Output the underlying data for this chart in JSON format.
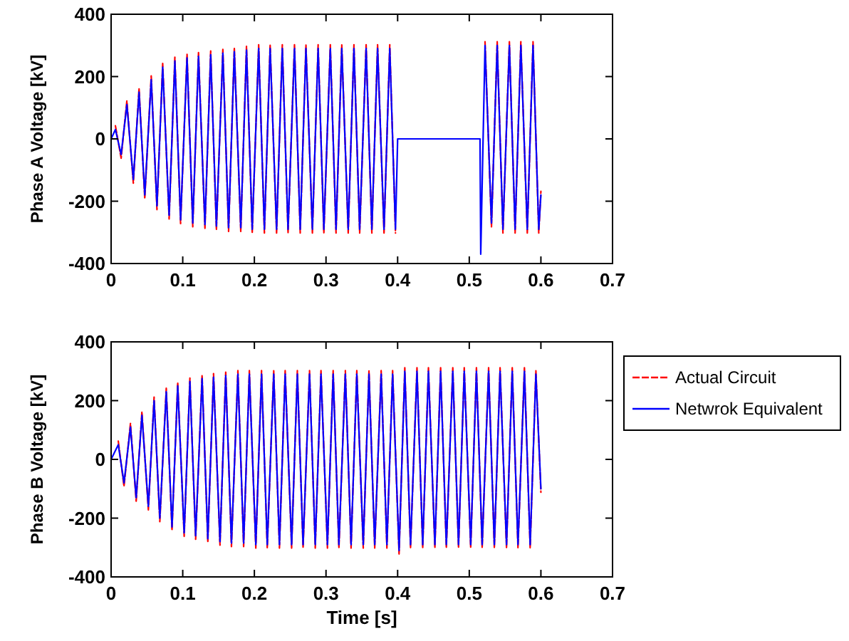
{
  "chart_data": [
    {
      "type": "line",
      "ylabel": "Phase A Voltage [kV]",
      "xlim": [
        0,
        0.7
      ],
      "xticks": [
        0,
        0.1,
        0.2,
        0.3,
        0.4,
        0.5,
        0.6,
        0.7
      ],
      "ylim": [
        -400,
        400
      ],
      "yticks": [
        -400,
        -200,
        0,
        200,
        400
      ],
      "grid": false,
      "legend": false,
      "series": [
        {
          "color": "#ff0000",
          "line_style": "dashed",
          "x": [
            0.006,
            0.014,
            0.022,
            0.031,
            0.039,
            0.047,
            0.056,
            0.064,
            0.072,
            0.081,
            0.089,
            0.097,
            0.106,
            0.114,
            0.122,
            0.131,
            0.139,
            0.147,
            0.156,
            0.164,
            0.172,
            0.181,
            0.189,
            0.197,
            0.206,
            0.214,
            0.222,
            0.231,
            0.239,
            0.247,
            0.256,
            0.264,
            0.272,
            0.281,
            0.289,
            0.297,
            0.306,
            0.314,
            0.322,
            0.331,
            0.339,
            0.347,
            0.356,
            0.364,
            0.372,
            0.381,
            0.389,
            0.397,
            0.4,
            0.515,
            0.516,
            0.522,
            0.531,
            0.539,
            0.547,
            0.556,
            0.564,
            0.572,
            0.581,
            0.589,
            0.597,
            0.6
          ],
          "values": [
            42,
            -62,
            122,
            -142,
            162,
            -192,
            202,
            -227,
            242,
            -257,
            262,
            -272,
            272,
            -282,
            277,
            -287,
            282,
            -292,
            287,
            -297,
            292,
            -297,
            297,
            -302,
            302,
            -302,
            302,
            -302,
            302,
            -302,
            302,
            -302,
            302,
            -302,
            302,
            -302,
            302,
            -302,
            302,
            -302,
            302,
            -302,
            302,
            -302,
            302,
            -302,
            302,
            -302,
            null,
            null,
            null,
            312,
            -282,
            312,
            -302,
            312,
            -302,
            312,
            -302,
            312,
            -302,
            -168
          ]
        },
        {
          "color": "#0000ff",
          "line_style": "solid",
          "x": [
            0,
            0.006,
            0.014,
            0.022,
            0.031,
            0.039,
            0.047,
            0.056,
            0.064,
            0.072,
            0.081,
            0.089,
            0.097,
            0.106,
            0.114,
            0.122,
            0.131,
            0.139,
            0.147,
            0.156,
            0.164,
            0.172,
            0.181,
            0.189,
            0.197,
            0.206,
            0.214,
            0.222,
            0.231,
            0.239,
            0.247,
            0.256,
            0.264,
            0.272,
            0.281,
            0.289,
            0.297,
            0.306,
            0.314,
            0.322,
            0.331,
            0.339,
            0.347,
            0.356,
            0.364,
            0.372,
            0.381,
            0.389,
            0.397,
            0.4,
            0.515,
            0.516,
            0.522,
            0.531,
            0.539,
            0.547,
            0.556,
            0.564,
            0.572,
            0.581,
            0.589,
            0.597,
            0.6
          ],
          "values": [
            0,
            30,
            -50,
            110,
            -130,
            150,
            -180,
            190,
            -215,
            230,
            -245,
            250,
            -260,
            260,
            -270,
            265,
            -275,
            270,
            -280,
            275,
            -285,
            280,
            -285,
            285,
            -290,
            290,
            -290,
            290,
            -290,
            290,
            -290,
            290,
            -290,
            290,
            -290,
            290,
            -290,
            290,
            -290,
            290,
            -290,
            290,
            -290,
            290,
            -290,
            290,
            -290,
            290,
            -290,
            0,
            0,
            -370,
            300,
            -270,
            300,
            -290,
            300,
            -290,
            300,
            -290,
            300,
            -290,
            -180
          ]
        }
      ]
    },
    {
      "type": "line",
      "ylabel": "Phase B Voltage [kV]",
      "xlabel": "Time [s]",
      "xlim": [
        0,
        0.7
      ],
      "xticks": [
        0,
        0.1,
        0.2,
        0.3,
        0.4,
        0.5,
        0.6,
        0.7
      ],
      "ylim": [
        -400,
        400
      ],
      "yticks": [
        -400,
        -200,
        0,
        200,
        400
      ],
      "grid": false,
      "legend": "right",
      "series": [
        {
          "name": "Actual Circuit",
          "color": "#ff0000",
          "line_style": "dashed",
          "x": [
            0.01,
            0.018,
            0.027,
            0.035,
            0.043,
            0.052,
            0.06,
            0.068,
            0.077,
            0.085,
            0.093,
            0.102,
            0.11,
            0.118,
            0.127,
            0.135,
            0.143,
            0.152,
            0.16,
            0.168,
            0.177,
            0.185,
            0.193,
            0.202,
            0.21,
            0.218,
            0.227,
            0.235,
            0.243,
            0.252,
            0.26,
            0.268,
            0.277,
            0.285,
            0.293,
            0.302,
            0.31,
            0.318,
            0.327,
            0.335,
            0.343,
            0.352,
            0.36,
            0.368,
            0.377,
            0.385,
            0.393,
            0.402,
            0.41,
            0.418,
            0.427,
            0.435,
            0.443,
            0.452,
            0.46,
            0.468,
            0.477,
            0.485,
            0.493,
            0.502,
            0.51,
            0.518,
            0.527,
            0.535,
            0.543,
            0.552,
            0.56,
            0.568,
            0.577,
            0.585,
            0.593,
            0.6
          ],
          "values": [
            62,
            -92,
            122,
            -142,
            162,
            -172,
            212,
            -212,
            242,
            -242,
            262,
            -262,
            277,
            -272,
            287,
            -282,
            292,
            -292,
            297,
            -297,
            302,
            -297,
            302,
            -302,
            302,
            -302,
            302,
            -302,
            302,
            -302,
            302,
            -302,
            302,
            -302,
            302,
            -302,
            302,
            -302,
            302,
            -302,
            302,
            -302,
            302,
            -302,
            302,
            -302,
            302,
            -322,
            312,
            -302,
            312,
            -302,
            312,
            -302,
            312,
            -302,
            312,
            -302,
            312,
            -302,
            312,
            -302,
            312,
            -302,
            312,
            -302,
            312,
            -302,
            312,
            -302,
            302,
            -112
          ]
        },
        {
          "name": "Netwrok Equivalent",
          "color": "#0000ff",
          "line_style": "solid",
          "x": [
            0,
            0.01,
            0.018,
            0.027,
            0.035,
            0.043,
            0.052,
            0.06,
            0.068,
            0.077,
            0.085,
            0.093,
            0.102,
            0.11,
            0.118,
            0.127,
            0.135,
            0.143,
            0.152,
            0.16,
            0.168,
            0.177,
            0.185,
            0.193,
            0.202,
            0.21,
            0.218,
            0.227,
            0.235,
            0.243,
            0.252,
            0.26,
            0.268,
            0.277,
            0.285,
            0.293,
            0.302,
            0.31,
            0.318,
            0.327,
            0.335,
            0.343,
            0.352,
            0.36,
            0.368,
            0.377,
            0.385,
            0.393,
            0.402,
            0.41,
            0.418,
            0.427,
            0.435,
            0.443,
            0.452,
            0.46,
            0.468,
            0.477,
            0.485,
            0.493,
            0.502,
            0.51,
            0.518,
            0.527,
            0.535,
            0.543,
            0.552,
            0.56,
            0.568,
            0.577,
            0.585,
            0.593,
            0.6
          ],
          "values": [
            0,
            50,
            -80,
            110,
            -130,
            150,
            -160,
            200,
            -200,
            230,
            -230,
            250,
            -250,
            265,
            -260,
            275,
            -270,
            280,
            -280,
            285,
            -285,
            290,
            -285,
            290,
            -290,
            290,
            -290,
            290,
            -290,
            290,
            -290,
            290,
            -290,
            290,
            -290,
            290,
            -290,
            290,
            -290,
            290,
            -290,
            290,
            -290,
            290,
            -290,
            290,
            -290,
            290,
            -310,
            300,
            -290,
            300,
            -290,
            300,
            -290,
            300,
            -290,
            300,
            -290,
            300,
            -290,
            300,
            -290,
            300,
            -290,
            300,
            -290,
            300,
            -290,
            300,
            -290,
            290,
            -100
          ]
        }
      ]
    }
  ]
}
